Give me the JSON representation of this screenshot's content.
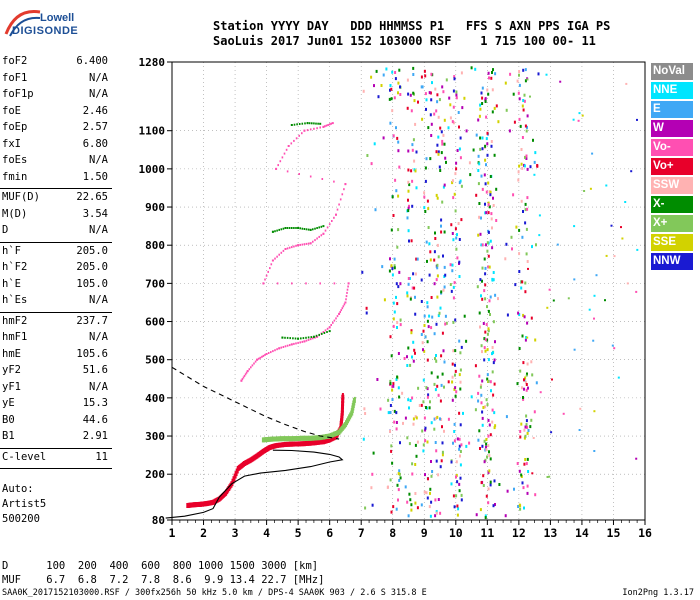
{
  "logo": {
    "line1": "Lowell",
    "line2": "DIGISONDE"
  },
  "header": {
    "labels": "Station YYYY DAY   DDD HHMMSS P1   FFS S AXN PPS IGA PS",
    "values": "SaoLuis 2017 Jun01 152 103000 RSF    1 715 100 00- 11"
  },
  "parameters": [
    {
      "label": "foF2",
      "value": "6.400"
    },
    {
      "label": "foF1",
      "value": "N/A"
    },
    {
      "label": "foF1p",
      "value": "N/A"
    },
    {
      "label": "foE",
      "value": "2.46"
    },
    {
      "label": "foEp",
      "value": "2.57"
    },
    {
      "label": "fxI",
      "value": "6.80"
    },
    {
      "label": "foEs",
      "value": "N/A"
    },
    {
      "label": "fmin",
      "value": "1.50"
    },
    {
      "label": "MUF(D)",
      "value": "22.65"
    },
    {
      "label": "M(D)",
      "value": "3.54"
    },
    {
      "label": "D",
      "value": "N/A"
    },
    {
      "label": "h`F",
      "value": "205.0"
    },
    {
      "label": "h`F2",
      "value": "205.0"
    },
    {
      "label": "h`E",
      "value": "105.0"
    },
    {
      "label": "h`Es",
      "value": "N/A"
    },
    {
      "label": "hmF2",
      "value": "237.7"
    },
    {
      "label": "hmF1",
      "value": "N/A"
    },
    {
      "label": "hmE",
      "value": "105.6"
    },
    {
      "label": "yF2",
      "value": "51.6"
    },
    {
      "label": "yF1",
      "value": "N/A"
    },
    {
      "label": "yE",
      "value": "15.3"
    },
    {
      "label": "B0",
      "value": "44.6"
    },
    {
      "label": "B1",
      "value": "2.91"
    },
    {
      "label": "C-level",
      "value": "11"
    }
  ],
  "autoscaling": {
    "line1": "Auto:",
    "line2": "Artist5",
    "line3": "500200"
  },
  "legend": [
    {
      "label": "NoVal",
      "color": "#8c8c8c"
    },
    {
      "label": "NNE",
      "color": "#00e5ff"
    },
    {
      "label": "E",
      "color": "#3fa8f5"
    },
    {
      "label": "W",
      "color": "#b400b4"
    },
    {
      "label": "Vo-",
      "color": "#ff4fb2"
    },
    {
      "label": "Vo+",
      "color": "#e8002a"
    },
    {
      "label": "SSW",
      "color": "#ffb2b2"
    },
    {
      "label": "X-",
      "color": "#008c00"
    },
    {
      "label": "X+",
      "color": "#82c85a"
    },
    {
      "label": "SSE",
      "color": "#d2d200"
    },
    {
      "label": "NNW",
      "color": "#1a1ad2"
    }
  ],
  "muf_table": {
    "d_label": "D",
    "d_values": "100  200  400  600  800 1000 1500 3000 [km]",
    "muf_label": "MUF",
    "muf_values": "6.7  6.8  7.2  7.8  8.6  9.9 13.4 22.7 [MHz]"
  },
  "footer": {
    "left": "SAA0K_2017152103000.RSF / 300fx256h 50 kHz 5.0 km / DPS-4 SAA0K 903 / 2.6 S 315.8 E",
    "right": "Ion2Png 1.3.17"
  },
  "chart_data": {
    "type": "scatter",
    "title": "",
    "xlabel": "",
    "ylabel": "",
    "x_unit": "MHz",
    "y_unit": "km",
    "xlim": [
      1,
      16
    ],
    "ylim": [
      80,
      1280
    ],
    "xticks": [
      1,
      2,
      3,
      4,
      5,
      6,
      7,
      8,
      9,
      10,
      11,
      12,
      13,
      14,
      15,
      16
    ],
    "yticks": [
      80,
      200,
      300,
      400,
      500,
      600,
      700,
      800,
      900,
      1000,
      1100,
      1280
    ],
    "grid": true,
    "legend_position": "right",
    "series": [
      {
        "name": "Vo+",
        "color": "#e8002a",
        "style": "o-trace",
        "points": [
          [
            1.5,
            118
          ],
          [
            1.7,
            120
          ],
          [
            1.9,
            121
          ],
          [
            2.1,
            123
          ],
          [
            2.3,
            126
          ],
          [
            2.5,
            135
          ],
          [
            2.7,
            150
          ],
          [
            2.9,
            175
          ],
          [
            3.1,
            215
          ],
          [
            3.3,
            228
          ],
          [
            3.5,
            237
          ],
          [
            3.7,
            248
          ],
          [
            3.9,
            260
          ],
          [
            4.1,
            270
          ],
          [
            4.3,
            275
          ],
          [
            4.6,
            278
          ],
          [
            4.9,
            279
          ],
          [
            5.2,
            280
          ],
          [
            5.5,
            282
          ],
          [
            5.8,
            285
          ],
          [
            6.0,
            290
          ],
          [
            6.2,
            298
          ],
          [
            6.35,
            320
          ],
          [
            6.4,
            360
          ],
          [
            6.42,
            410
          ]
        ]
      },
      {
        "name": "X+",
        "color": "#82c85a",
        "style": "x-trace",
        "points": [
          [
            3.9,
            290
          ],
          [
            4.2,
            292
          ],
          [
            4.5,
            293
          ],
          [
            4.8,
            293
          ],
          [
            5.1,
            294
          ],
          [
            5.4,
            294
          ],
          [
            5.7,
            296
          ],
          [
            6.0,
            300
          ],
          [
            6.3,
            310
          ],
          [
            6.5,
            330
          ],
          [
            6.7,
            360
          ],
          [
            6.8,
            400
          ]
        ]
      },
      {
        "name": "Vo-",
        "color": "#ff4fb2",
        "style": "o-echo",
        "points": [
          [
            3.2,
            445
          ],
          [
            3.4,
            470
          ],
          [
            3.7,
            500
          ],
          [
            4.0,
            515
          ],
          [
            4.4,
            530
          ],
          [
            4.8,
            540
          ],
          [
            5.2,
            548
          ],
          [
            5.6,
            560
          ],
          [
            6.0,
            585
          ],
          [
            6.3,
            620
          ],
          [
            6.5,
            650
          ],
          [
            6.6,
            700
          ],
          [
            3.9,
            700
          ],
          [
            4.2,
            760
          ],
          [
            4.6,
            790
          ],
          [
            5.0,
            800
          ],
          [
            5.4,
            805
          ],
          [
            5.8,
            830
          ],
          [
            6.2,
            880
          ],
          [
            6.5,
            960
          ],
          [
            4.3,
            1000
          ],
          [
            4.7,
            1060
          ],
          [
            5.2,
            1100
          ],
          [
            5.8,
            1110
          ],
          [
            6.1,
            1120
          ]
        ]
      },
      {
        "name": "X-",
        "color": "#008c00",
        "style": "x-echo",
        "points": [
          [
            4.5,
            558
          ],
          [
            5.0,
            555
          ],
          [
            5.5,
            560
          ],
          [
            6.0,
            575
          ],
          [
            4.2,
            835
          ],
          [
            4.6,
            845
          ],
          [
            5.0,
            845
          ],
          [
            5.4,
            840
          ],
          [
            5.8,
            850
          ],
          [
            4.8,
            1115
          ],
          [
            5.3,
            1120
          ],
          [
            5.7,
            1118
          ]
        ]
      }
    ],
    "profile": {
      "name": "profile",
      "solid": [
        [
          0.8,
          85
        ],
        [
          1.4,
          90
        ],
        [
          2.0,
          100
        ],
        [
          2.3,
          110
        ],
        [
          2.5,
          140
        ],
        [
          2.9,
          175
        ],
        [
          3.3,
          195
        ],
        [
          3.8,
          203
        ],
        [
          4.6,
          210
        ],
        [
          5.4,
          220
        ],
        [
          6.0,
          232
        ],
        [
          6.4,
          237.7
        ],
        [
          6.3,
          245
        ],
        [
          6.0,
          252
        ],
        [
          5.5,
          258
        ],
        [
          4.8,
          262
        ],
        [
          4.2,
          263
        ]
      ],
      "dashed": [
        [
          1.0,
          480
        ],
        [
          1.5,
          455
        ],
        [
          2.0,
          430
        ],
        [
          2.5,
          410
        ],
        [
          3.0,
          390
        ],
        [
          3.5,
          370
        ],
        [
          4.0,
          350
        ],
        [
          4.6,
          330
        ],
        [
          5.2,
          312
        ],
        [
          5.7,
          300
        ],
        [
          6.1,
          295
        ],
        [
          6.3,
          292
        ]
      ]
    },
    "noise_band": {
      "from_mhz": 7.0,
      "to_mhz": 12.6
    }
  }
}
